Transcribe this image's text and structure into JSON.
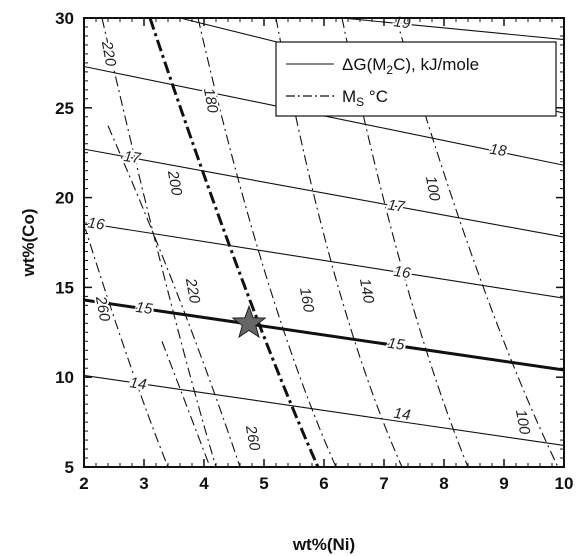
{
  "chart_data": {
    "type": "line",
    "xlabel": "wt%(Ni)",
    "ylabel": "wt%(Co)",
    "xlim": [
      2,
      10
    ],
    "ylim": [
      5,
      30
    ],
    "xticks": [
      "2",
      "3",
      "4",
      "5",
      "6",
      "7",
      "8",
      "9",
      "10"
    ],
    "yticks": [
      "5",
      "10",
      "15",
      "20",
      "25",
      "30"
    ],
    "legend": {
      "placement": "top-right",
      "entries": [
        {
          "label_main": "ΔG(M",
          "label_sub": "2",
          "label_end": "C), kJ/mole",
          "style": "solid"
        },
        {
          "label_main": "M",
          "label_sub": "S",
          "label_end": " °C",
          "style": "dashdot"
        }
      ]
    },
    "series": [
      {
        "group": "dG",
        "label": "19",
        "bold": false,
        "style": "solid",
        "points": [
          [
            6.3,
            30
          ],
          [
            10,
            28.8
          ]
        ],
        "label_at": [
          7.3,
          29.7
        ]
      },
      {
        "group": "dG",
        "label": "18",
        "bold": false,
        "style": "solid",
        "points": [
          [
            3.6,
            30
          ],
          [
            10,
            24.7
          ]
        ],
        "label_at": [
          6.7,
          27.1
        ]
      },
      {
        "group": "dG",
        "label": "18",
        "bold": false,
        "style": "solid",
        "points": [
          [
            2,
            27.3
          ],
          [
            10,
            21.8
          ]
        ],
        "label_at": [
          8.9,
          22.6
        ]
      },
      {
        "group": "dG",
        "label": "17",
        "bold": false,
        "style": "solid",
        "points": [
          [
            2,
            22.7
          ],
          [
            10,
            17.8
          ]
        ],
        "label_at": [
          2.8,
          22.2
        ]
      },
      {
        "group": "dG",
        "label": "17",
        "bold": false,
        "style": "solid",
        "points": [
          [
            2,
            22.7
          ],
          [
            10,
            17.8
          ]
        ],
        "label_at": [
          7.2,
          19.5
        ]
      },
      {
        "group": "dG",
        "label": "16",
        "bold": false,
        "style": "solid",
        "points": [
          [
            2,
            18.6
          ],
          [
            10,
            14.4
          ]
        ],
        "label_at": [
          2.2,
          18.5
        ]
      },
      {
        "group": "dG",
        "label": "16",
        "bold": false,
        "style": "solid",
        "points": [
          [
            2,
            18.6
          ],
          [
            10,
            14.4
          ]
        ],
        "label_at": [
          7.3,
          15.8
        ]
      },
      {
        "group": "dG",
        "label": "15",
        "bold": true,
        "style": "solid",
        "points": [
          [
            2,
            14.3
          ],
          [
            10,
            10.4
          ]
        ],
        "label_at": [
          3.0,
          13.8
        ]
      },
      {
        "group": "dG",
        "label": "15",
        "bold": true,
        "style": "solid",
        "points": [
          [
            2,
            14.3
          ],
          [
            10,
            10.4
          ]
        ],
        "label_at": [
          7.2,
          11.8
        ]
      },
      {
        "group": "dG",
        "label": "14",
        "bold": false,
        "style": "solid",
        "points": [
          [
            2,
            10.1
          ],
          [
            10,
            6.2
          ]
        ],
        "label_at": [
          2.9,
          9.6
        ]
      },
      {
        "group": "dG",
        "label": "14",
        "bold": false,
        "style": "solid",
        "points": [
          [
            2,
            10.1
          ],
          [
            10,
            6.2
          ]
        ],
        "label_at": [
          7.3,
          7.9
        ]
      },
      {
        "group": "Ms",
        "label": "220",
        "bold": false,
        "style": "dashdot",
        "points": [
          [
            2.3,
            30
          ],
          [
            3.4,
            14
          ],
          [
            4.2,
            5
          ]
        ],
        "label_at": [
          2.4,
          28.0
        ]
      },
      {
        "group": "Ms",
        "label": "180",
        "bold": false,
        "style": "dashdot",
        "points": [
          [
            3.9,
            30
          ],
          [
            5.0,
            14
          ],
          [
            6.2,
            5
          ]
        ],
        "label_at": [
          4.1,
          25.4
        ]
      },
      {
        "group": "Ms",
        "label": "200",
        "bold": true,
        "style": "dashdot",
        "points": [
          [
            3.1,
            30
          ],
          [
            4.7,
            14
          ],
          [
            5.9,
            5
          ]
        ],
        "label_at": [
          3.5,
          20.8
        ]
      },
      {
        "group": "Ms",
        "label": "220",
        "bold": false,
        "style": "dashdot",
        "points": [
          [
            2.4,
            24
          ],
          [
            3.7,
            14
          ],
          [
            4.6,
            5
          ]
        ],
        "label_at": [
          3.8,
          14.8
        ]
      },
      {
        "group": "Ms",
        "label": "160",
        "bold": false,
        "style": "dashdot",
        "points": [
          [
            5.2,
            30
          ],
          [
            6.1,
            14
          ],
          [
            7.3,
            5
          ]
        ],
        "label_at": [
          5.7,
          14.3
        ]
      },
      {
        "group": "Ms",
        "label": "140",
        "bold": false,
        "style": "dashdot",
        "points": [
          [
            6.3,
            30
          ],
          [
            7.3,
            14
          ],
          [
            8.4,
            5
          ]
        ],
        "label_at": [
          6.7,
          14.8
        ]
      },
      {
        "group": "Ms",
        "label": "100",
        "bold": false,
        "style": "dashdot",
        "points": [
          [
            7.2,
            30
          ],
          [
            8.6,
            14
          ],
          [
            9.9,
            5
          ]
        ],
        "label_at": [
          7.8,
          20.5
        ]
      },
      {
        "group": "Ms",
        "label": "100",
        "bold": false,
        "style": "dashdot",
        "points": [
          [
            7.2,
            30
          ],
          [
            8.6,
            14
          ],
          [
            9.9,
            5
          ]
        ],
        "label_at": [
          9.3,
          7.5
        ]
      },
      {
        "group": "Ms",
        "label": "260",
        "bold": false,
        "style": "dashdot",
        "points": [
          [
            2,
            18.5
          ],
          [
            2.8,
            10
          ],
          [
            3.4,
            5
          ]
        ],
        "label_at": [
          2.3,
          13.8
        ]
      },
      {
        "group": "Ms",
        "label": "260",
        "bold": false,
        "style": "dashdot",
        "points": [
          [
            3.3,
            12
          ],
          [
            4.1,
            5
          ]
        ],
        "label_at": [
          4.8,
          6.6
        ]
      }
    ],
    "marker": {
      "shape": "star",
      "x": 4.75,
      "y": 13.0,
      "color": "#666666"
    },
    "grid": false
  }
}
